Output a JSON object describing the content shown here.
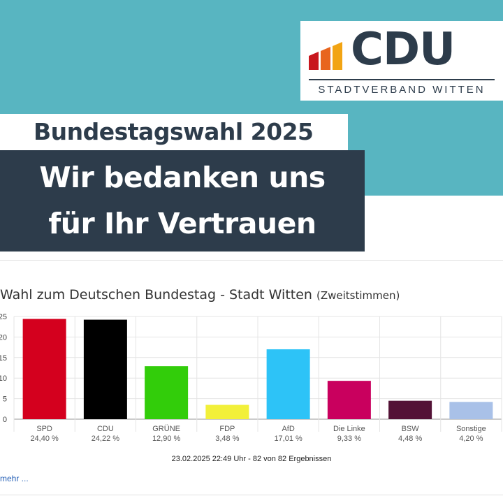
{
  "logo": {
    "text": "CDU",
    "subtitle": "STADTVERBAND WITTEN",
    "bar_colors": [
      "#c8171e",
      "#e8651e",
      "#f2a413"
    ]
  },
  "header": {
    "kicker": "Bundestagswahl 2025",
    "headline_line1": "Wir bedanken uns",
    "headline_line2": "für Ihr Vertrauen"
  },
  "colors": {
    "teal": "#58b5c1",
    "navy": "#2d3c4b"
  },
  "chart": {
    "title_main": "Wahl zum Deutschen Bundestag - Stadt Witten",
    "title_sub": "(Zweitstimmen)",
    "footer": "23.02.2025 22:49 Uhr - 82 von 82 Ergebnissen",
    "more_link": "mehr ..."
  },
  "chart_data": {
    "type": "bar",
    "categories": [
      "SPD",
      "CDU",
      "GRÜNE",
      "FDP",
      "AfD",
      "Die Linke",
      "BSW",
      "Sonstige"
    ],
    "values": [
      24.4,
      24.22,
      12.9,
      3.48,
      17.01,
      9.33,
      4.48,
      4.2
    ],
    "value_labels": [
      "24,40 %",
      "24,22 %",
      "12,90 %",
      "3,48 %",
      "17,01 %",
      "9,33 %",
      "4,48 %",
      "4,20 %"
    ],
    "colors": [
      "#d4001e",
      "#000000",
      "#32cd0a",
      "#f2f03a",
      "#2dc3f7",
      "#c9005e",
      "#531236",
      "#a9c1e8"
    ],
    "y_ticks": [
      "0",
      "5",
      "10",
      "15",
      "20",
      "25"
    ],
    "ylim": [
      0,
      25
    ],
    "grid": true
  }
}
